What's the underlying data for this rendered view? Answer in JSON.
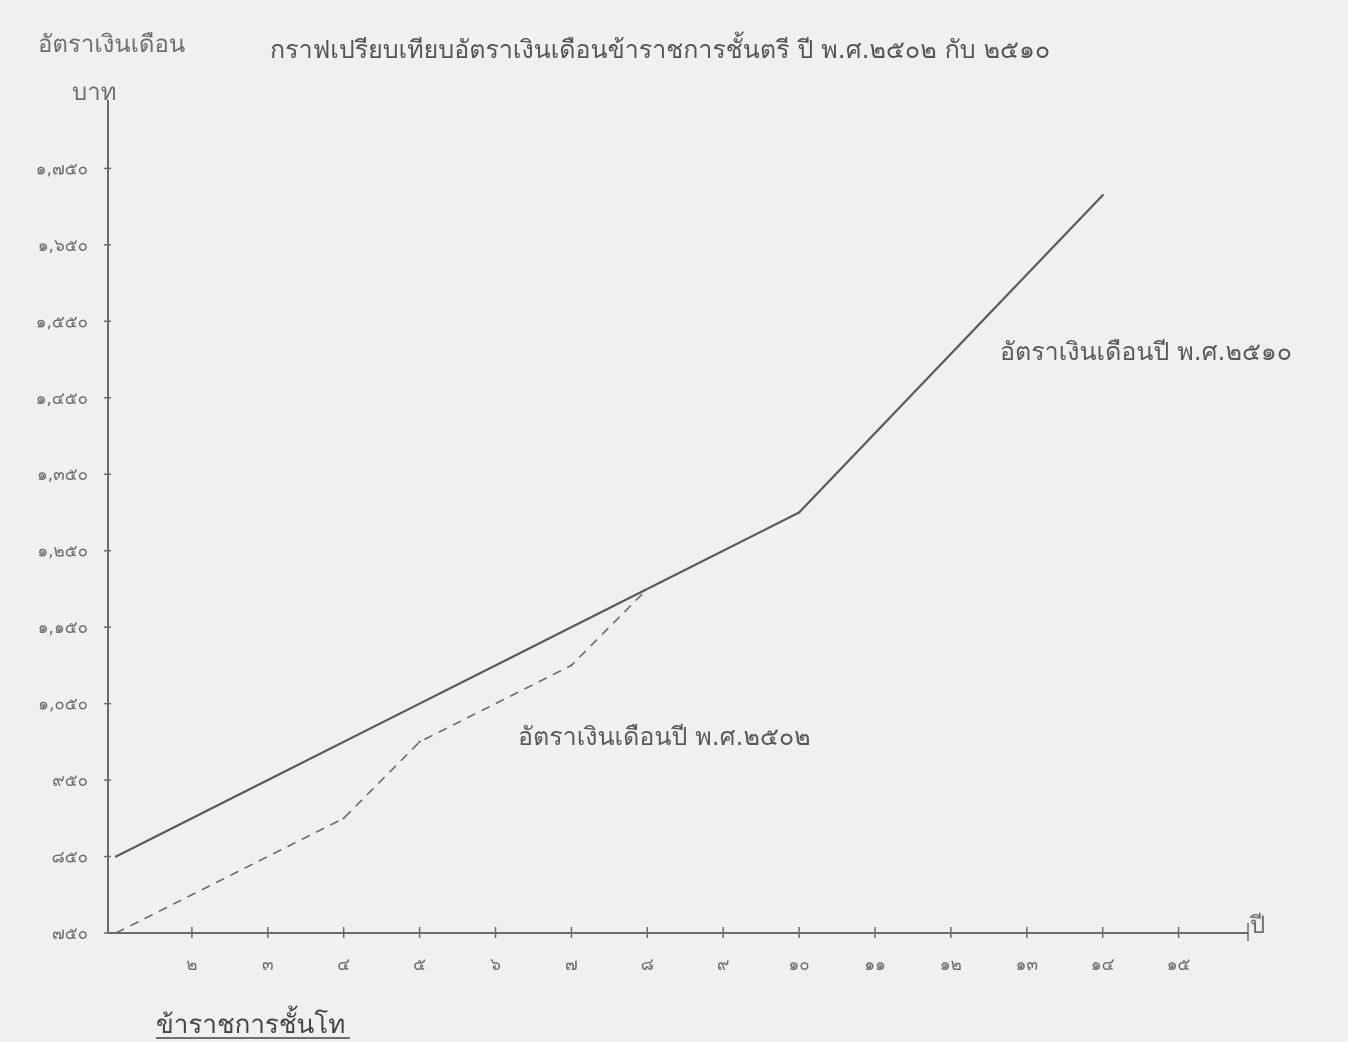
{
  "chart_data": {
    "type": "line",
    "title": "กราฟเปรียบเทียบอัตราเงินเดือนข้าราชการชั้นตรี ปี พ.ศ.๒๕๐๒ กับ ๒๕๑๐",
    "ylabel": "อัตราเงินเดือน",
    "yunit": "บาท",
    "xlabel": "ปี",
    "footnote": "ข้าราชการชั้นโท",
    "ylim": [
      750,
      1800
    ],
    "xlim": [
      1,
      16
    ],
    "x_ticks": [
      {
        "value": 2,
        "label": "๒"
      },
      {
        "value": 3,
        "label": "๓"
      },
      {
        "value": 4,
        "label": "๔"
      },
      {
        "value": 5,
        "label": "๕"
      },
      {
        "value": 6,
        "label": "๖"
      },
      {
        "value": 7,
        "label": "๗"
      },
      {
        "value": 8,
        "label": "๘"
      },
      {
        "value": 9,
        "label": "๙"
      },
      {
        "value": 10,
        "label": "๑๐"
      },
      {
        "value": 11,
        "label": "๑๑"
      },
      {
        "value": 12,
        "label": "๑๒"
      },
      {
        "value": 13,
        "label": "๑๓"
      },
      {
        "value": 14,
        "label": "๑๔"
      },
      {
        "value": 15,
        "label": "๑๕"
      }
    ],
    "y_ticks": [
      {
        "value": 750,
        "label": "๗๕๐"
      },
      {
        "value": 850,
        "label": "๘๕๐"
      },
      {
        "value": 950,
        "label": "๙๕๐"
      },
      {
        "value": 1050,
        "label": "๑,๐๕๐"
      },
      {
        "value": 1150,
        "label": "๑,๑๕๐"
      },
      {
        "value": 1250,
        "label": "๑,๒๕๐"
      },
      {
        "value": 1350,
        "label": "๑,๓๕๐"
      },
      {
        "value": 1450,
        "label": "๑,๔๕๐"
      },
      {
        "value": 1550,
        "label": "๑,๕๕๐"
      },
      {
        "value": 1650,
        "label": "๑,๖๕๐"
      },
      {
        "value": 1750,
        "label": "๑,๗๕๐"
      }
    ],
    "series": [
      {
        "name": "อัตราเงินเดือนปี พ.ศ.๒๕๑๐",
        "style": "solid",
        "color": "#5a5a5a",
        "points": [
          [
            1,
            850
          ],
          [
            10,
            1300
          ],
          [
            14,
            1715
          ]
        ]
      },
      {
        "name": "อัตราเงินเดือนปี พ.ศ.๒๕๐๒",
        "style": "dashed",
        "color": "#6a6a6a",
        "points": [
          [
            1,
            750
          ],
          [
            4,
            900
          ],
          [
            5,
            1000
          ],
          [
            7,
            1100
          ],
          [
            8,
            1200
          ]
        ]
      }
    ]
  }
}
